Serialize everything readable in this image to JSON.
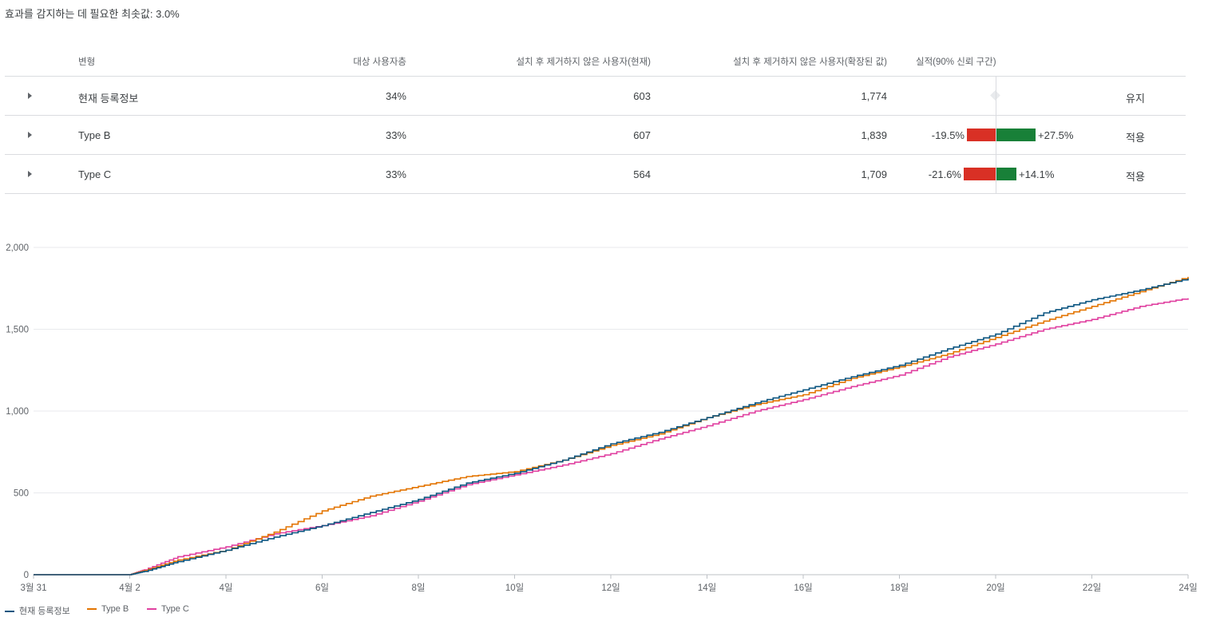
{
  "min_effect": "효과를 감지하는 데 필요한 최솟값: 3.0%",
  "table": {
    "headers": {
      "variant": "변형",
      "audience": "대상 사용자층",
      "current": "설치 후 제거하지 않은 사용자(현재)",
      "scaled": "설치 후 제거하지 않은 사용자(확장된 값)",
      "performance": "실적(90% 신뢰 구간)"
    },
    "rows": [
      {
        "name": "현재 등록정보",
        "audience": "34%",
        "current": "603",
        "scaled": "1,774",
        "low": "",
        "high": "",
        "status": "유지"
      },
      {
        "name": "Type B",
        "audience": "33%",
        "current": "607",
        "scaled": "1,839",
        "low": "-19.5%",
        "high": "+27.5%",
        "low_value": -19.5,
        "high_value": 27.5,
        "status": "적용"
      },
      {
        "name": "Type C",
        "audience": "33%",
        "current": "564",
        "scaled": "1,709",
        "low": "-21.6%",
        "high": "+14.1%",
        "low_value": -21.6,
        "high_value": 14.1,
        "status": "적용"
      }
    ]
  },
  "colors": {
    "negative": "#d93025",
    "positive": "#188038",
    "series_current": "#0b5580",
    "series_b": "#e37400",
    "series_c": "#e040a0"
  },
  "chart_data": {
    "type": "line",
    "x_ticks": [
      "3월 31",
      "4월 2",
      "4일",
      "6일",
      "8일",
      "10일",
      "12일",
      "14일",
      "16일",
      "18일",
      "20일",
      "22일",
      "24일"
    ],
    "y_ticks": [
      "0",
      "500",
      "1,000",
      "1,500",
      "2,000"
    ],
    "ylim": [
      0,
      2000
    ],
    "xlim": [
      0,
      24
    ],
    "grid": true,
    "legend_position": "bottom-left",
    "series": [
      {
        "name": "현재 등록정보",
        "points": [
          [
            0,
            0
          ],
          [
            2,
            0
          ],
          [
            2.3,
            20
          ],
          [
            3,
            80
          ],
          [
            4,
            150
          ],
          [
            5,
            230
          ],
          [
            6,
            300
          ],
          [
            7,
            380
          ],
          [
            8,
            460
          ],
          [
            9,
            560
          ],
          [
            10,
            620
          ],
          [
            11,
            700
          ],
          [
            12,
            800
          ],
          [
            13,
            870
          ],
          [
            14,
            960
          ],
          [
            15,
            1050
          ],
          [
            16,
            1130
          ],
          [
            17,
            1210
          ],
          [
            18,
            1280
          ],
          [
            19,
            1380
          ],
          [
            20,
            1470
          ],
          [
            21,
            1600
          ],
          [
            22,
            1680
          ],
          [
            23,
            1740
          ],
          [
            24,
            1810
          ]
        ]
      },
      {
        "name": "Type B",
        "points": [
          [
            0,
            0
          ],
          [
            2,
            0
          ],
          [
            2.3,
            25
          ],
          [
            3,
            90
          ],
          [
            4,
            150
          ],
          [
            5,
            260
          ],
          [
            6,
            390
          ],
          [
            7,
            480
          ],
          [
            8,
            540
          ],
          [
            9,
            600
          ],
          [
            10,
            630
          ],
          [
            11,
            700
          ],
          [
            12,
            790
          ],
          [
            13,
            860
          ],
          [
            14,
            960
          ],
          [
            15,
            1040
          ],
          [
            16,
            1100
          ],
          [
            17,
            1200
          ],
          [
            18,
            1270
          ],
          [
            19,
            1350
          ],
          [
            20,
            1450
          ],
          [
            21,
            1550
          ],
          [
            22,
            1640
          ],
          [
            23,
            1730
          ],
          [
            24,
            1820
          ]
        ]
      },
      {
        "name": "Type C",
        "points": [
          [
            0,
            0
          ],
          [
            2,
            0
          ],
          [
            2.3,
            30
          ],
          [
            3,
            110
          ],
          [
            4,
            170
          ],
          [
            5,
            250
          ],
          [
            6,
            300
          ],
          [
            7,
            360
          ],
          [
            8,
            450
          ],
          [
            9,
            550
          ],
          [
            10,
            610
          ],
          [
            11,
            670
          ],
          [
            12,
            740
          ],
          [
            13,
            830
          ],
          [
            14,
            910
          ],
          [
            15,
            1000
          ],
          [
            16,
            1070
          ],
          [
            17,
            1150
          ],
          [
            18,
            1220
          ],
          [
            19,
            1330
          ],
          [
            20,
            1410
          ],
          [
            21,
            1500
          ],
          [
            22,
            1560
          ],
          [
            23,
            1640
          ],
          [
            24,
            1690
          ]
        ]
      }
    ]
  }
}
